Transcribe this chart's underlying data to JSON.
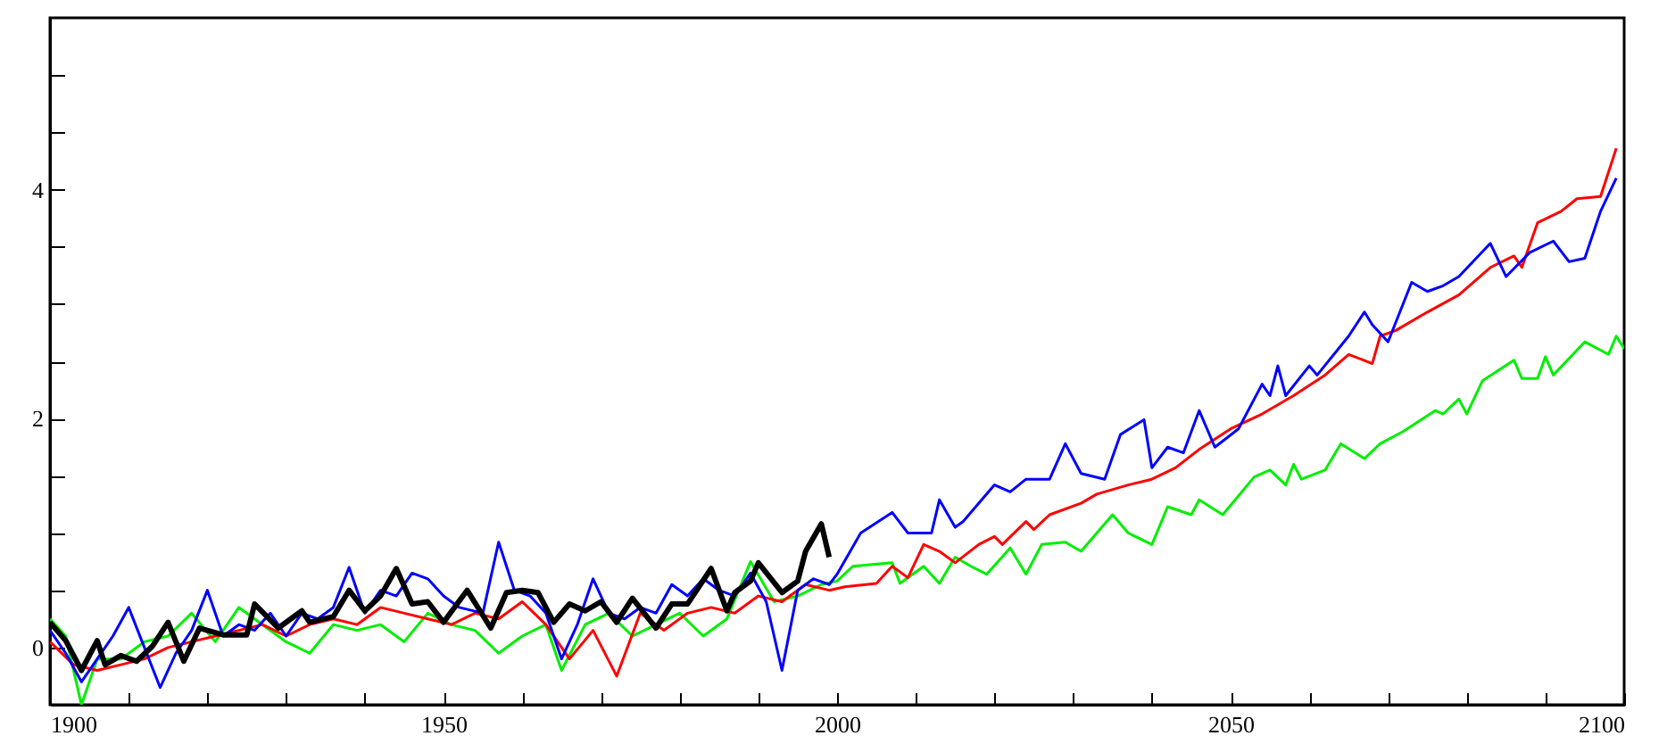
{
  "chart_data": {
    "type": "line",
    "xlim": [
      1900,
      2100
    ],
    "xticks": [
      1900,
      {
        "value": 1910,
        "label": null
      },
      {
        "value": 1920,
        "label": null
      },
      {
        "value": 1930,
        "label": null
      },
      {
        "value": 1940,
        "label": null
      },
      1950,
      {
        "value": 1960,
        "label": null
      },
      {
        "value": 1970,
        "label": null
      },
      {
        "value": 1980,
        "label": null
      },
      {
        "value": 1990,
        "label": null
      },
      2000,
      {
        "value": 2010,
        "label": null
      },
      {
        "value": 2020,
        "label": null
      },
      {
        "value": 2030,
        "label": null
      },
      {
        "value": 2040,
        "label": null
      },
      2050,
      {
        "value": 2060,
        "label": null
      },
      {
        "value": 2070,
        "label": null
      },
      {
        "value": 2080,
        "label": null
      },
      {
        "value": 2090,
        "label": null
      },
      2100
    ],
    "ylim": [
      -0.5,
      5.5
    ],
    "yticks": [
      0,
      {
        "value": 0.5,
        "label": null
      },
      {
        "value": 1,
        "label": null
      },
      {
        "value": 1.5,
        "label": null
      },
      2,
      {
        "value": 2.5,
        "label": null
      },
      {
        "value": 3,
        "label": null
      },
      {
        "value": 3.5,
        "label": null
      },
      4,
      {
        "value": 4.5,
        "label": null
      },
      {
        "value": 5,
        "label": null
      }
    ],
    "series": [
      {
        "color": "#00ee00",
        "x": [
          1900,
          1902,
          1904,
          1906,
          1909,
          1912,
          1915,
          1918,
          1921,
          1924,
          1927,
          1930,
          1933,
          1936,
          1939,
          1942,
          1945,
          1948,
          1951,
          1954,
          1957,
          1960,
          1963,
          1965,
          1968,
          1971,
          1974,
          1977,
          1980,
          1983,
          1986,
          1989,
          1992,
          1995,
          1998,
          2000,
          2002,
          2007,
          2008,
          2011,
          2013,
          2015,
          2017,
          2019,
          2022,
          2024,
          2026,
          2029,
          2031,
          2035,
          2037,
          2040,
          2042,
          2045,
          2046,
          2049,
          2053,
          2055,
          2057,
          2058,
          2059,
          2062,
          2064,
          2067,
          2069,
          2072,
          2076,
          2077,
          2079,
          2080,
          2082,
          2086,
          2087,
          2089,
          2090,
          2091,
          2095,
          2098,
          2099,
          2100
        ],
        "values": [
          0.25,
          0.1,
          -0.5,
          -0.1,
          -0.1,
          0.05,
          0.1,
          0.3,
          0.05,
          0.35,
          0.2,
          0.05,
          -0.05,
          0.2,
          0.15,
          0.2,
          0.05,
          0.3,
          0.2,
          0.15,
          -0.05,
          0.1,
          0.2,
          -0.2,
          0.2,
          0.3,
          0.1,
          0.2,
          0.3,
          0.1,
          0.25,
          0.75,
          0.4,
          0.45,
          0.55,
          0.58,
          0.71,
          0.74,
          0.56,
          0.71,
          0.56,
          0.79,
          0.71,
          0.64,
          0.87,
          0.64,
          0.9,
          0.92,
          0.84,
          1.16,
          1.0,
          0.9,
          1.23,
          1.16,
          1.29,
          1.16,
          1.49,
          1.55,
          1.42,
          1.6,
          1.47,
          1.55,
          1.78,
          1.65,
          1.78,
          1.89,
          2.07,
          2.04,
          2.17,
          2.04,
          2.33,
          2.51,
          2.35,
          2.35,
          2.54,
          2.38,
          2.67,
          2.56,
          2.72,
          2.61
        ]
      },
      {
        "color": "#ff0000",
        "x": [
          1900,
          1903,
          1906,
          1909,
          1912,
          1915,
          1918,
          1921,
          1924,
          1927,
          1930,
          1933,
          1936,
          1939,
          1942,
          1945,
          1948,
          1951,
          1954,
          1957,
          1960,
          1963,
          1966,
          1969,
          1972,
          1975,
          1978,
          1981,
          1984,
          1987,
          1990,
          1993,
          1996,
          1999,
          2001,
          2005,
          2007,
          2009,
          2011,
          2013,
          2015,
          2018,
          2020,
          2021,
          2024,
          2025,
          2027,
          2031,
          2033,
          2037,
          2040,
          2043,
          2046,
          2050,
          2054,
          2058,
          2062,
          2065,
          2068,
          2069,
          2071,
          2075,
          2079,
          2083,
          2086,
          2087,
          2089,
          2092,
          2094,
          2097,
          2099
        ],
        "values": [
          0.05,
          -0.15,
          -0.2,
          -0.15,
          -0.1,
          0.0,
          0.05,
          0.1,
          0.15,
          0.2,
          0.1,
          0.2,
          0.25,
          0.2,
          0.35,
          0.3,
          0.25,
          0.2,
          0.3,
          0.25,
          0.4,
          0.2,
          -0.1,
          0.15,
          -0.25,
          0.3,
          0.15,
          0.3,
          0.35,
          0.3,
          0.45,
          0.4,
          0.55,
          0.5,
          0.53,
          0.56,
          0.71,
          0.61,
          0.9,
          0.84,
          0.74,
          0.9,
          0.97,
          0.9,
          1.1,
          1.03,
          1.16,
          1.26,
          1.34,
          1.42,
          1.47,
          1.57,
          1.73,
          1.91,
          2.04,
          2.2,
          2.38,
          2.56,
          2.48,
          2.72,
          2.77,
          2.93,
          3.08,
          3.32,
          3.42,
          3.32,
          3.71,
          3.81,
          3.92,
          3.94,
          4.36
        ]
      },
      {
        "color": "#0000ff",
        "x": [
          1900,
          1902,
          1904,
          1906,
          1908,
          1910,
          1912,
          1914,
          1916,
          1918,
          1920,
          1922,
          1924,
          1926,
          1928,
          1930,
          1932,
          1934,
          1936,
          1938,
          1940,
          1942,
          1944,
          1946,
          1948,
          1950,
          1952,
          1955,
          1957,
          1959,
          1961,
          1963,
          1965,
          1967,
          1969,
          1971,
          1973,
          1975,
          1977,
          1979,
          1981,
          1983,
          1985,
          1987,
          1989,
          1991,
          1993,
          1995,
          1997,
          1999,
          2000,
          2003,
          2007,
          2009,
          2012,
          2013,
          2015,
          2016,
          2020,
          2022,
          2024,
          2027,
          2029,
          2031,
          2034,
          2036,
          2039,
          2040,
          2042,
          2044,
          2046,
          2048,
          2051,
          2054,
          2055,
          2056,
          2057,
          2060,
          2061,
          2065,
          2067,
          2068,
          2070,
          2073,
          2075,
          2077,
          2079,
          2083,
          2085,
          2088,
          2091,
          2093,
          2095,
          2097,
          2099
        ],
        "values": [
          0.15,
          -0.05,
          -0.3,
          -0.1,
          0.1,
          0.35,
          0.0,
          -0.35,
          -0.05,
          0.15,
          0.5,
          0.1,
          0.2,
          0.15,
          0.3,
          0.1,
          0.3,
          0.25,
          0.35,
          0.7,
          0.3,
          0.5,
          0.45,
          0.65,
          0.6,
          0.45,
          0.35,
          0.3,
          0.92,
          0.5,
          0.45,
          0.3,
          -0.1,
          0.2,
          0.6,
          0.3,
          0.25,
          0.35,
          0.3,
          0.55,
          0.45,
          0.6,
          0.5,
          0.45,
          0.65,
          0.4,
          -0.2,
          0.5,
          0.6,
          0.55,
          0.64,
          1.0,
          1.18,
          1.0,
          1.0,
          1.29,
          1.05,
          1.1,
          1.42,
          1.36,
          1.47,
          1.47,
          1.78,
          1.52,
          1.47,
          1.86,
          1.99,
          1.57,
          1.75,
          1.7,
          2.07,
          1.75,
          1.91,
          2.3,
          2.2,
          2.46,
          2.2,
          2.46,
          2.38,
          2.72,
          2.93,
          2.82,
          2.67,
          3.19,
          3.11,
          3.16,
          3.24,
          3.53,
          3.24,
          3.45,
          3.55,
          3.37,
          3.4,
          3.81,
          4.1
        ]
      },
      {
        "color": "#000000",
        "x": [
          1900,
          1902,
          1904,
          1906,
          1907,
          1909,
          1911,
          1913,
          1915,
          1917,
          1919,
          1922,
          1925,
          1926,
          1929,
          1932,
          1933,
          1936,
          1938,
          1940,
          1942,
          1944,
          1946,
          1948,
          1950,
          1953,
          1956,
          1958,
          1960,
          1962,
          1964,
          1966,
          1968,
          1970,
          1972,
          1974,
          1977,
          1979,
          1981,
          1984,
          1986,
          1987,
          1989,
          1990,
          1993,
          1995,
          1996,
          1998,
          1999
        ],
        "values": [
          0.22,
          0.06,
          -0.2,
          0.06,
          -0.15,
          -0.07,
          -0.12,
          0.01,
          0.22,
          -0.12,
          0.17,
          0.11,
          0.11,
          0.38,
          0.17,
          0.32,
          0.22,
          0.27,
          0.5,
          0.32,
          0.45,
          0.69,
          0.38,
          0.4,
          0.22,
          0.5,
          0.17,
          0.48,
          0.5,
          0.48,
          0.22,
          0.38,
          0.32,
          0.4,
          0.22,
          0.43,
          0.17,
          0.38,
          0.38,
          0.69,
          0.32,
          0.48,
          0.58,
          0.74,
          0.48,
          0.58,
          0.84,
          1.08,
          0.79
        ]
      }
    ]
  }
}
